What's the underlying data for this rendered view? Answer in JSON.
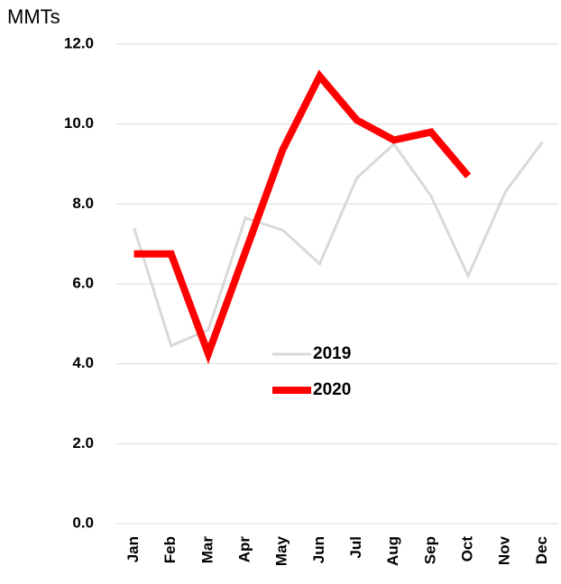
{
  "chart_data": {
    "type": "line",
    "y_label": "MMTs",
    "categories": [
      "Jan",
      "Feb",
      "Mar",
      "Apr",
      "May",
      "Jun",
      "Jul",
      "Aug",
      "Sep",
      "Oct",
      "Nov",
      "Dec"
    ],
    "series": [
      {
        "name": "2019",
        "color": "#d9d9d9",
        "values": [
          7.4,
          4.45,
          4.85,
          7.65,
          7.35,
          6.5,
          8.65,
          9.5,
          8.2,
          6.2,
          8.3,
          9.55
        ]
      },
      {
        "name": "2020",
        "color": "#ff0000",
        "values": [
          6.75,
          6.75,
          4.25,
          6.8,
          9.35,
          11.2,
          10.1,
          9.6,
          9.8,
          8.7,
          null,
          null
        ]
      }
    ],
    "ylim": [
      0,
      12
    ],
    "yticks": [
      {
        "value": 0,
        "label": "0.0"
      },
      {
        "value": 2,
        "label": "2.0"
      },
      {
        "value": 4,
        "label": "4.0"
      },
      {
        "value": 6,
        "label": "6.0"
      },
      {
        "value": 8,
        "label": "8.0"
      },
      {
        "value": 10,
        "label": "10.0"
      },
      {
        "value": 12,
        "label": "12.0"
      }
    ],
    "grid": true
  }
}
